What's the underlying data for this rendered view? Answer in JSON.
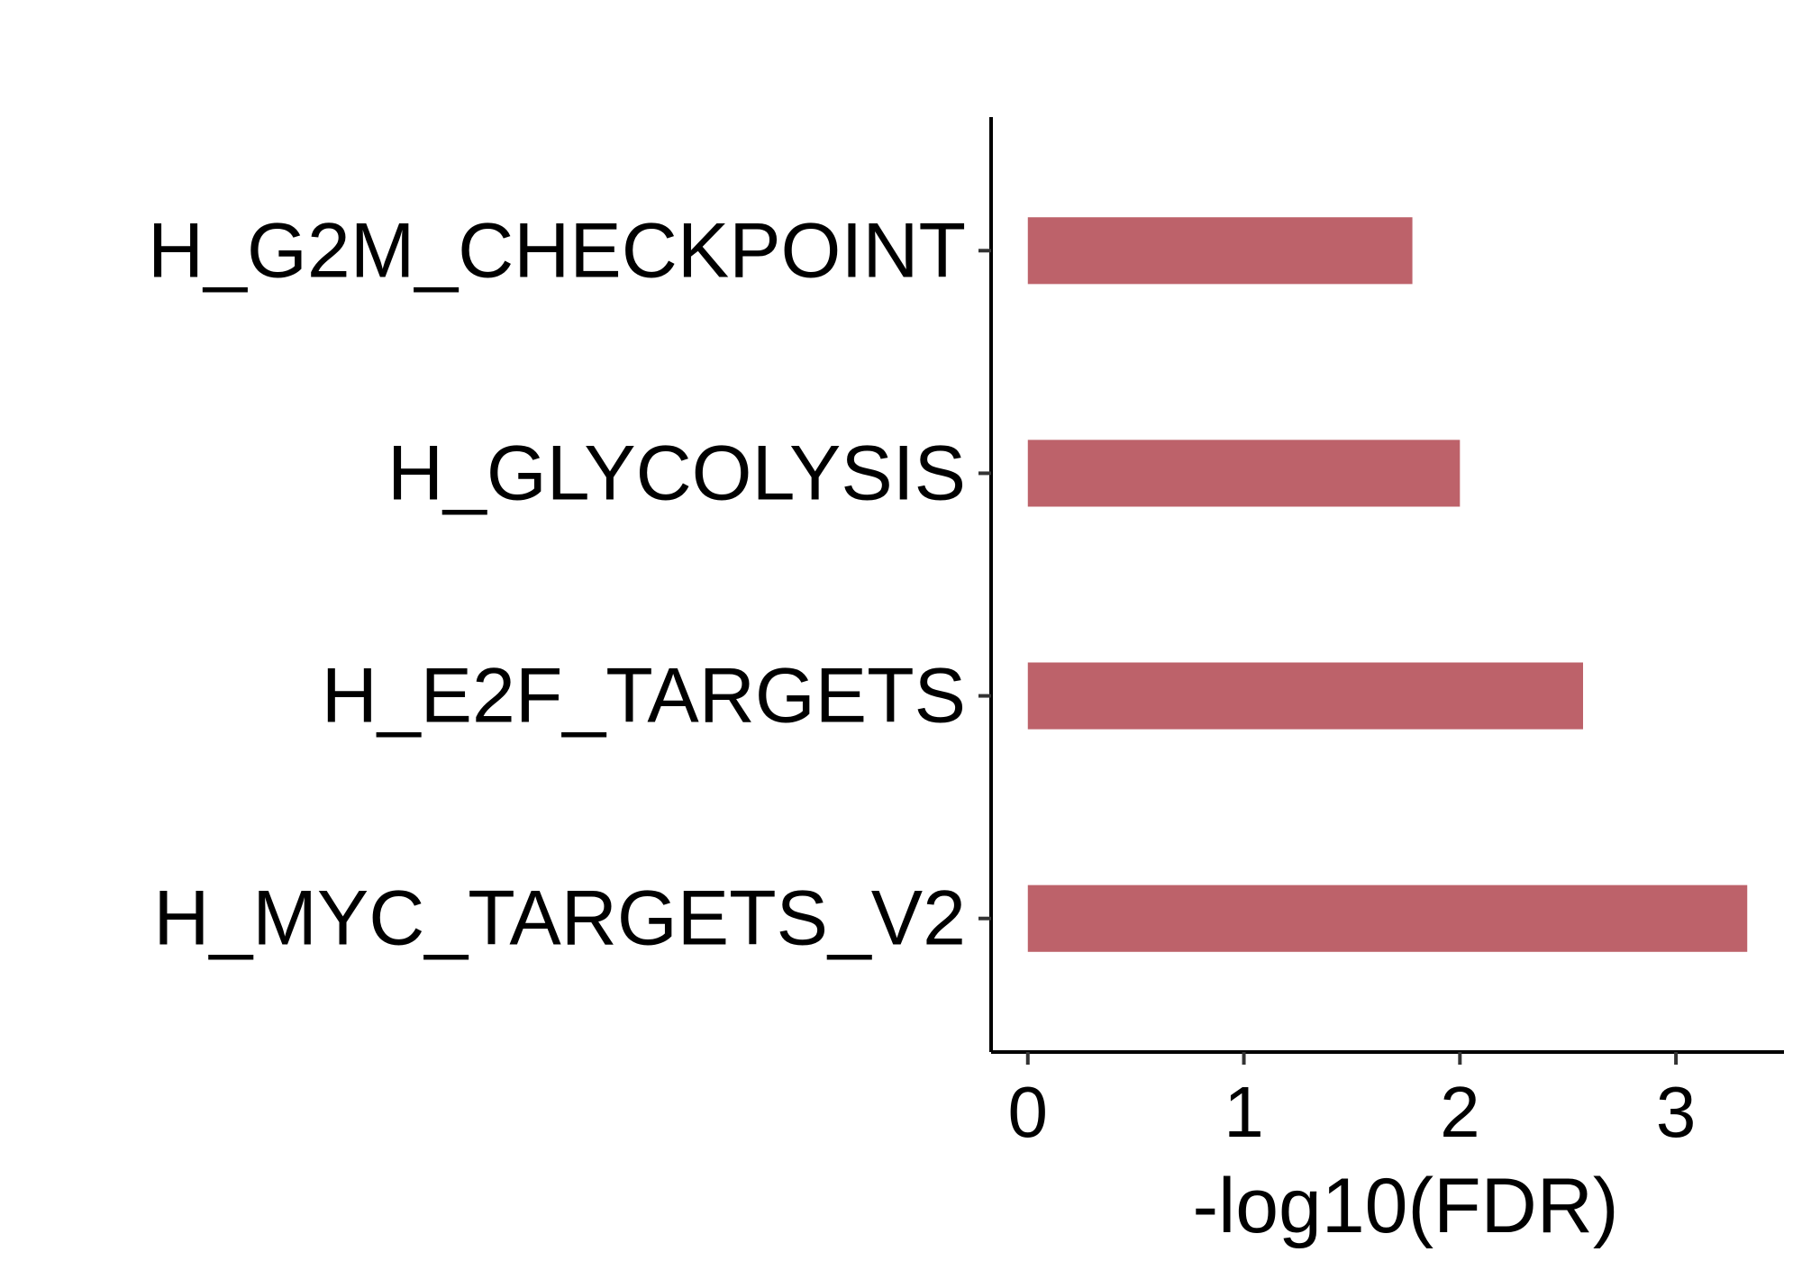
{
  "chart_data": {
    "type": "bar",
    "orientation": "horizontal",
    "categories": [
      "H_G2M_CHECKPOINT",
      "H_GLYCOLYSIS",
      "H_E2F_TARGETS",
      "H_MYC_TARGETS_V2"
    ],
    "values": [
      1.78,
      2.0,
      2.57,
      3.33
    ],
    "xlabel": "-log10(FDR)",
    "ylabel": "",
    "title": "",
    "xlim": [
      -0.17,
      3.5
    ],
    "x_ticks": [
      "0",
      "1",
      "2",
      "3"
    ],
    "grid": false,
    "legend": "none",
    "bar_color": "#bd626a"
  }
}
